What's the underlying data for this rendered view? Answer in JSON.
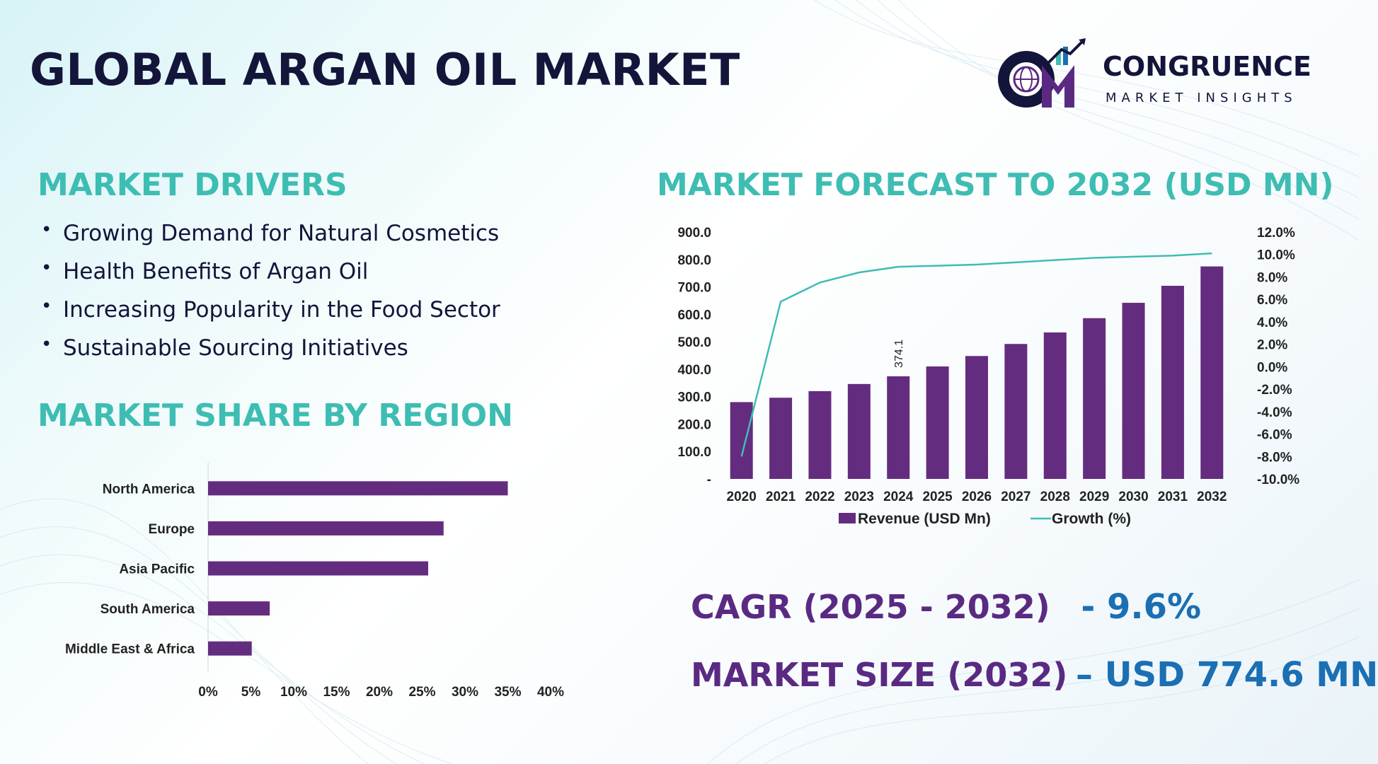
{
  "title": "GLOBAL ARGAN OIL MARKET",
  "logo": {
    "initials": "CM",
    "name": "CONGRUENCE",
    "tagline": "MARKET INSIGHTS"
  },
  "colors": {
    "accent": "#3ebdb3",
    "navy": "#13153a",
    "purple": "#5a2a82",
    "bar": "#642c7f",
    "line": "#3ebdb3",
    "kpi_value": "#1b6fb3"
  },
  "drivers": {
    "heading": "MARKET DRIVERS",
    "items": [
      "Growing Demand for Natural Cosmetics",
      "Health Benefits of Argan Oil",
      "Increasing Popularity in the Food Sector",
      "Sustainable Sourcing Initiatives"
    ]
  },
  "region": {
    "heading": "MARKET SHARE BY REGION"
  },
  "forecast": {
    "heading": "MARKET FORECAST TO 2032 (USD MN)"
  },
  "kpis": {
    "cagr_label": "CAGR (2025 - 2032)",
    "cagr_value": "- 9.6%",
    "size_label": "MARKET SIZE (2032)",
    "size_value": "– USD 774.6 MN"
  },
  "chart_data": [
    {
      "type": "bar",
      "orientation": "horizontal",
      "categories": [
        "North America",
        "Europe",
        "Asia Pacific",
        "South America",
        "Middle East & Africa"
      ],
      "values": [
        35,
        27.5,
        25.7,
        7.2,
        5.1
      ],
      "xlim": [
        0,
        40
      ],
      "xticks": [
        "0%",
        "5%",
        "10%",
        "15%",
        "20%",
        "25%",
        "30%",
        "35%",
        "40%"
      ],
      "grid": false
    },
    {
      "type": "bar",
      "categories": [
        "2020",
        "2021",
        "2022",
        "2023",
        "2024",
        "2025",
        "2026",
        "2027",
        "2028",
        "2029",
        "2030",
        "2031",
        "2032"
      ],
      "series": [
        {
          "name": "Revenue (USD Mn)",
          "axis": "left",
          "type": "bar",
          "values": [
            280,
            296,
            320,
            346,
            374.1,
            410,
            448,
            492,
            534,
            586,
            642,
            704,
            774.6
          ]
        },
        {
          "name": "Growth (%)",
          "axis": "right",
          "type": "line",
          "values": [
            -8.0,
            5.8,
            7.5,
            8.4,
            8.9,
            9.0,
            9.1,
            9.3,
            9.5,
            9.7,
            9.8,
            9.9,
            10.1
          ]
        }
      ],
      "ylim": [
        0,
        900
      ],
      "yticks": [
        "-",
        "100.0",
        "200.0",
        "300.0",
        "400.0",
        "500.0",
        "600.0",
        "700.0",
        "800.0",
        "900.0"
      ],
      "y2lim": [
        -10,
        12
      ],
      "y2ticks": [
        "-10.0%",
        "-8.0%",
        "-6.0%",
        "-4.0%",
        "-2.0%",
        "0.0%",
        "2.0%",
        "4.0%",
        "6.0%",
        "8.0%",
        "10.0%",
        "12.0%"
      ],
      "data_labels": [
        {
          "category": "2024",
          "text": "374.1"
        }
      ],
      "legend": "bottom",
      "grid": false
    }
  ]
}
